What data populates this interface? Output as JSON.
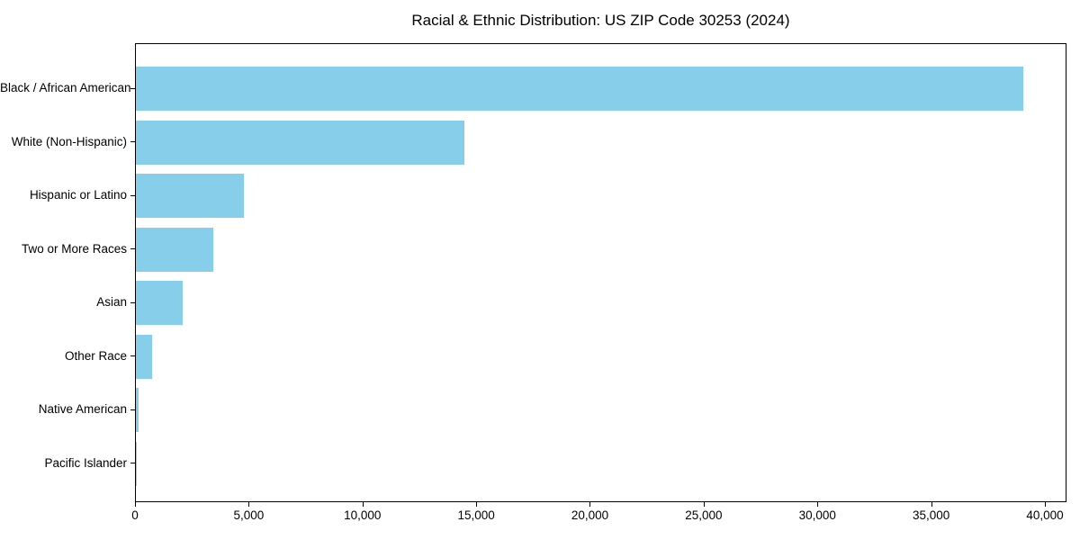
{
  "figure": {
    "background": "#ffffff",
    "text_color": "#000000"
  },
  "chart_data": {
    "type": "bar",
    "orientation": "horizontal",
    "title": "Racial & Ethnic Distribution: US ZIP Code 30253 (2024)",
    "categories": [
      "Black / African American",
      "White (Non-Hispanic)",
      "Hispanic or Latino",
      "Two or More Races",
      "Asian",
      "Other Race",
      "Native American",
      "Pacific Islander"
    ],
    "values": [
      39000,
      14450,
      4750,
      3400,
      2050,
      700,
      100,
      30
    ],
    "xlabel": "",
    "ylabel": "",
    "xlim": [
      0,
      40950
    ],
    "xticks": [
      {
        "value": 0,
        "label": "0"
      },
      {
        "value": 5000,
        "label": "5,000"
      },
      {
        "value": 10000,
        "label": "10,000"
      },
      {
        "value": 15000,
        "label": "15,000"
      },
      {
        "value": 20000,
        "label": "20,000"
      },
      {
        "value": 25000,
        "label": "25,000"
      },
      {
        "value": 30000,
        "label": "30,000"
      },
      {
        "value": 35000,
        "label": "35,000"
      },
      {
        "value": 40000,
        "label": "40,000"
      }
    ],
    "grid": false,
    "legend": null,
    "bar_color": "#87CEEB"
  }
}
